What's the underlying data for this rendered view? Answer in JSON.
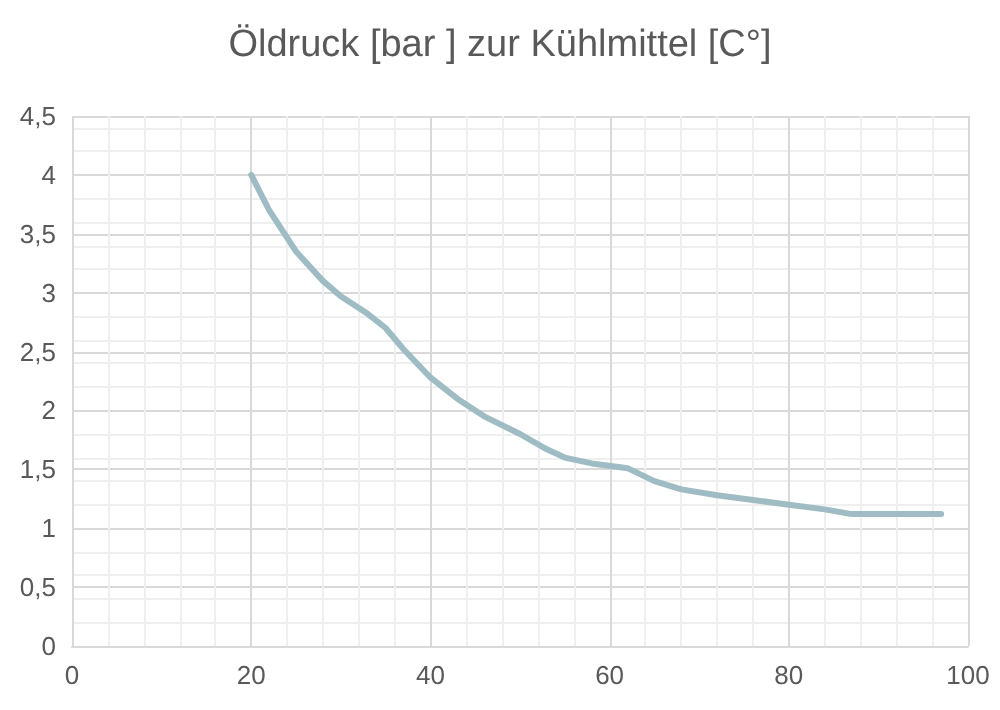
{
  "chart_data": {
    "type": "line",
    "title": "Öldruck [bar ] zur Kühlmittel [C°]",
    "x": [
      20,
      22,
      25,
      28,
      30,
      33,
      35,
      37,
      40,
      43,
      46,
      50,
      53,
      55,
      58,
      61,
      62,
      65,
      68,
      72,
      76,
      80,
      84,
      87,
      92,
      97
    ],
    "series": [
      {
        "color": "#9fbcc4",
        "values": [
          4.0,
          3.7,
          3.35,
          3.1,
          2.97,
          2.82,
          2.7,
          2.52,
          2.28,
          2.1,
          1.95,
          1.8,
          1.67,
          1.6,
          1.55,
          1.52,
          1.51,
          1.4,
          1.33,
          1.28,
          1.24,
          1.2,
          1.16,
          1.12,
          1.12,
          1.12
        ]
      }
    ],
    "xlim": [
      0,
      100
    ],
    "xticks": [
      0,
      20,
      40,
      60,
      80,
      100
    ],
    "ylim": [
      0,
      4.5
    ],
    "yticks": [
      {
        "value": 0,
        "label": "0"
      },
      {
        "value": 0.5,
        "label": "0,5"
      },
      {
        "value": 1,
        "label": "1"
      },
      {
        "value": 1.5,
        "label": "1,5"
      },
      {
        "value": 2,
        "label": "2"
      },
      {
        "value": 2.5,
        "label": "2,5"
      },
      {
        "value": 3,
        "label": "3"
      },
      {
        "value": 3.5,
        "label": "3,5"
      },
      {
        "value": 4,
        "label": "4"
      },
      {
        "value": 4.5,
        "label": "4,5"
      }
    ],
    "grid": true,
    "marker": "none",
    "line_style": "solid"
  }
}
